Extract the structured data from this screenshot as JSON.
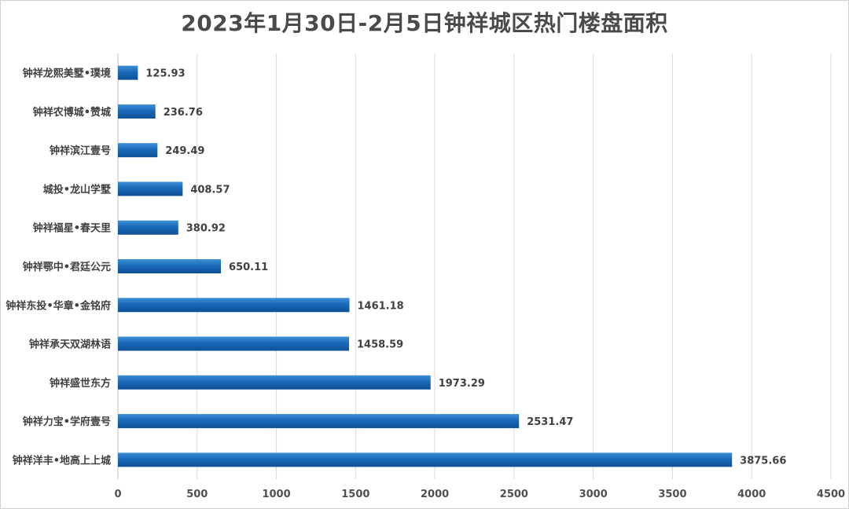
{
  "title": "2023年1月30日-2月5日钟祥城区热门楼盘面积",
  "colors": {
    "bar_top": "#3f8fd6",
    "bar_mid": "#1a6ab9",
    "bar_bottom": "#0d4f95",
    "grid": "#d9d9d9",
    "axis": "#bfbfbf"
  },
  "chart_data": {
    "type": "bar",
    "orientation": "horizontal",
    "title": "2023年1月30日-2月5日钟祥城区热门楼盘面积",
    "categories": [
      "钟祥龙熙美墅•璞境",
      "钟祥农博城•赞城",
      "钟祥滨江壹号",
      "城投•龙山学墅",
      "钟祥福星•春天里",
      "钟祥鄂中•君廷公元",
      "钟祥东投•华章•金铭府",
      "钟祥承天双湖林语",
      "钟祥盛世东方",
      "钟祥力宝•学府壹号",
      "钟祥洋丰•地高上上城"
    ],
    "values": [
      125.93,
      236.76,
      249.49,
      408.57,
      380.92,
      650.11,
      1461.18,
      1458.59,
      1973.29,
      2531.47,
      3875.66
    ],
    "value_labels": [
      "125.93",
      "236.76",
      "249.49",
      "408.57",
      "380.92",
      "650.11",
      "1461.18",
      "1458.59",
      "1973.29",
      "2531.47",
      "3875.66"
    ],
    "xlim": [
      0,
      4500
    ],
    "x_ticks": [
      0,
      500,
      1000,
      1500,
      2000,
      2500,
      3000,
      3500,
      4000,
      4500
    ],
    "x_tick_labels": [
      "0",
      "500",
      "1000",
      "1500",
      "2000",
      "2500",
      "3000",
      "3500",
      "4000",
      "4500"
    ],
    "xlabel": "",
    "ylabel": "",
    "grid": "vertical",
    "legend": "none"
  }
}
